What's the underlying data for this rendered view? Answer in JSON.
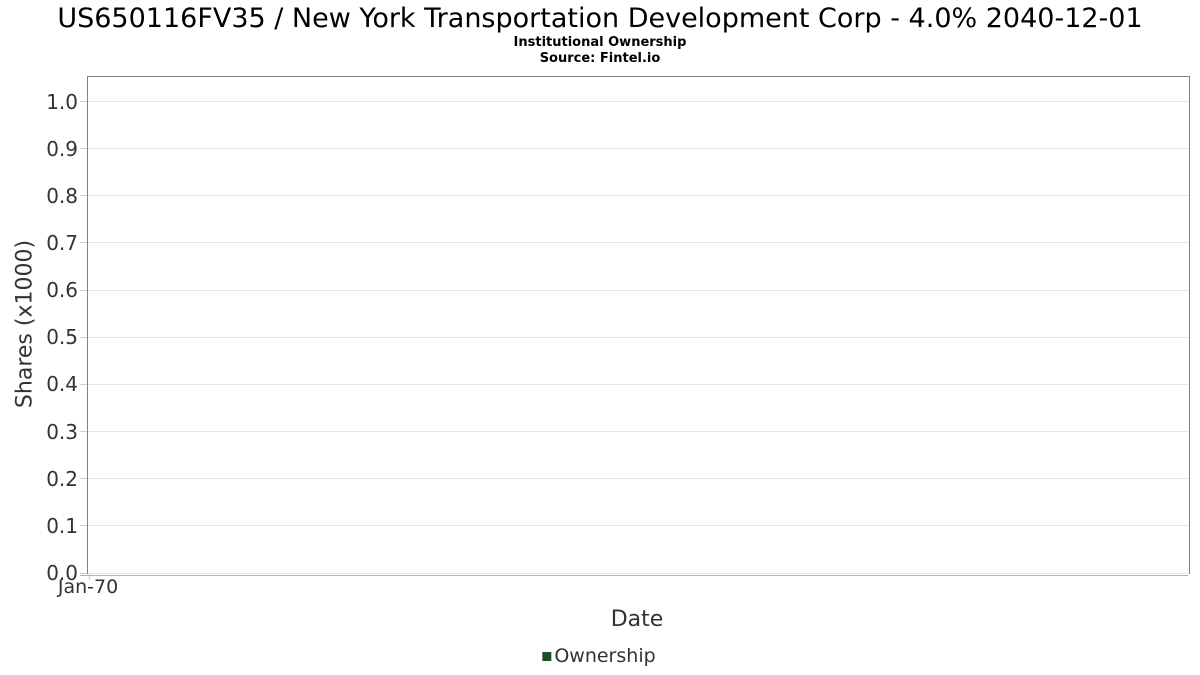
{
  "chart_data": {
    "type": "bar",
    "title": "US650116FV35 / New York Transportation Development Corp - 4.0% 2040-12-01",
    "subtitle": "Institutional Ownership",
    "source": "Source: Fintel.io",
    "xlabel": "Date",
    "ylabel": "Shares (x1000)",
    "x_ticks": [
      "Jan-70"
    ],
    "y_ticks": [
      "0.0",
      "0.1",
      "0.2",
      "0.3",
      "0.4",
      "0.5",
      "0.6",
      "0.7",
      "0.8",
      "0.9",
      "1.0"
    ],
    "ylim": [
      0,
      1.052
    ],
    "grid": true,
    "legend_position": "bottom",
    "series": [
      {
        "name": "Ownership",
        "color": "#1d4d2b",
        "values": []
      }
    ],
    "colors": {
      "grid": "#e6e6e6",
      "plot_border": "#808080",
      "axis_line": "#b3b3b3",
      "tick": "#cccccc",
      "text": "#333333",
      "title_text": "#000000"
    }
  }
}
